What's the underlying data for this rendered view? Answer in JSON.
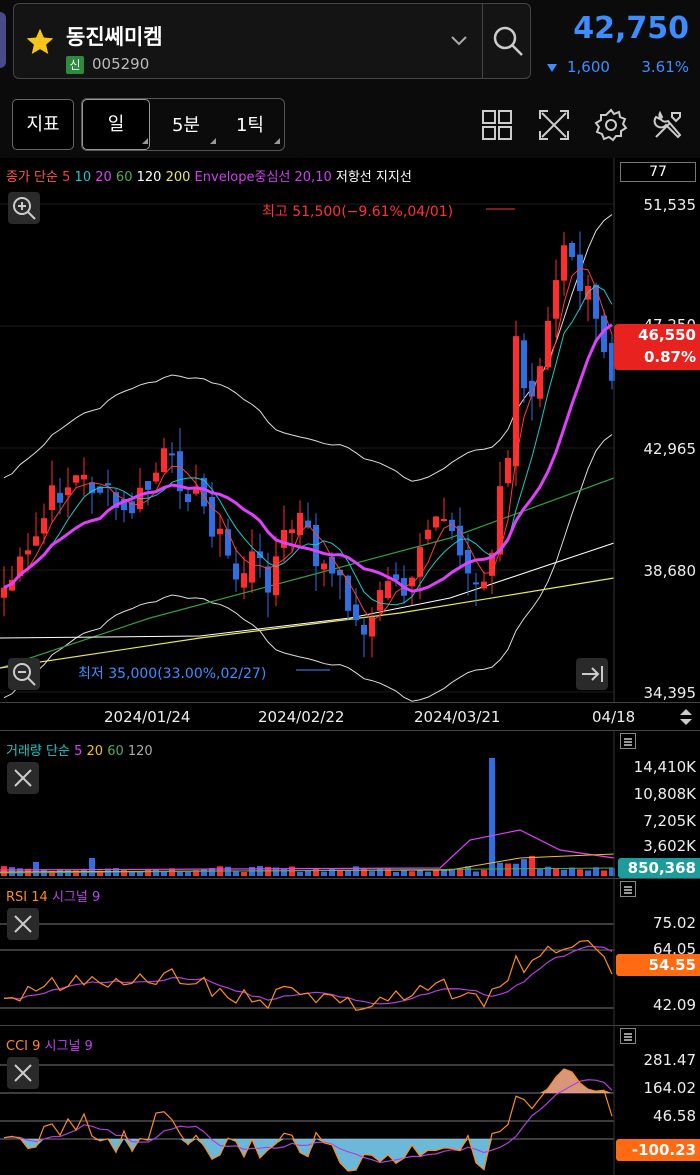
{
  "header": {
    "stock_name": "동진쎄미켐",
    "badge": "신",
    "stock_code": "005290",
    "price": "42,750",
    "change": "1,600",
    "change_pct": "3.61%",
    "change_direction": "down"
  },
  "toolbar": {
    "indicator_btn": "지표",
    "period_day": "일",
    "period_min": "5분",
    "period_tick": "1틱"
  },
  "main_chart": {
    "legend": [
      {
        "text": "종가 단순",
        "color": "#ff5555"
      },
      {
        "text": "5",
        "color": "#ff3b3b"
      },
      {
        "text": "10",
        "color": "#19c9c9"
      },
      {
        "text": "20",
        "color": "#e040fb"
      },
      {
        "text": "60",
        "color": "#4caf50"
      },
      {
        "text": "120",
        "color": "#ffffff"
      },
      {
        "text": "200",
        "color": "#e8e85a"
      },
      {
        "text": "Envelope중심선 20,10",
        "color": "#d040f0"
      },
      {
        "text": "저항선 지지선",
        "color": "#ffffff"
      }
    ],
    "count_box": "77",
    "price_labels": [
      "51,535",
      "47,250",
      "42,965",
      "38,680",
      "34,395"
    ],
    "current_price_tag": "46,550",
    "current_pct_tag": "0.87%",
    "high_note": "최고 51,500(−9.61%,04/01)",
    "low_note": "최저 35,000(33.00%,02/27)",
    "dates": [
      "2024/01/24",
      "2024/02/22",
      "2024/03/21",
      "04/18"
    ]
  },
  "volume_panel": {
    "legend": [
      {
        "text": "거래량 단순",
        "color": "#19c9c9"
      },
      {
        "text": "5",
        "color": "#e040fb"
      },
      {
        "text": "20",
        "color": "#f0c020"
      },
      {
        "text": "60",
        "color": "#4caf50"
      },
      {
        "text": "120",
        "color": "#aaaaaa"
      }
    ],
    "labels": [
      "14,410K",
      "10,808K",
      "7,205K",
      "3,602K"
    ],
    "current_tag": "850,368"
  },
  "rsi_panel": {
    "legend": [
      {
        "text": "RSI 14",
        "color": "#ff8c1a"
      },
      {
        "text": "시그널 9",
        "color": "#c040f0"
      }
    ],
    "labels": [
      "75.02",
      "64.05",
      "42.09"
    ],
    "current_tag": "54.55"
  },
  "cci_panel": {
    "legend": [
      {
        "text": "CCI 9",
        "color": "#ff8c1a"
      },
      {
        "text": "시그널 9",
        "color": "#c040f0"
      }
    ],
    "labels": [
      "281.47",
      "164.02",
      "46.58"
    ],
    "current_tag": "-100.23"
  },
  "colors": {
    "up": "#ff2d2d",
    "down": "#2f6fe0",
    "accent": "#3e8dff",
    "tag_orange": "#ff6a13",
    "tag_teal": "#1e9b9b"
  }
}
